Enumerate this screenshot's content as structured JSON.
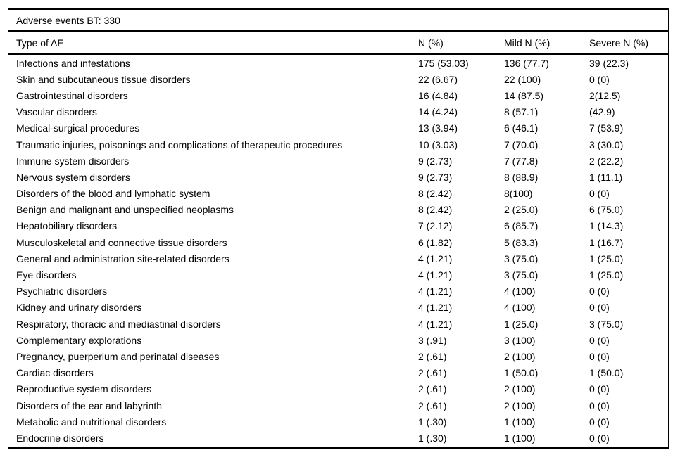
{
  "table": {
    "title": "Adverse events BT: 330",
    "columns": [
      "Type of AE",
      "N (%)",
      "Mild N (%)",
      "Severe N (%)"
    ],
    "rows": [
      [
        "Infections and infestations",
        "175 (53.03)",
        "136 (77.7)",
        "39 (22.3)"
      ],
      [
        "Skin and subcutaneous tissue disorders",
        "22 (6.67)",
        "22 (100)",
        "0 (0)"
      ],
      [
        "Gastrointestinal disorders",
        "16 (4.84)",
        "14 (87.5)",
        "2(12.5)"
      ],
      [
        "Vascular disorders",
        "14 (4.24)",
        "8 (57.1)",
        "(42.9)"
      ],
      [
        "Medical-surgical procedures",
        "13 (3.94)",
        "6 (46.1)",
        "7 (53.9)"
      ],
      [
        "Traumatic injuries, poisonings and complications of therapeutic procedures",
        "10 (3.03)",
        "7 (70.0)",
        "3 (30.0)"
      ],
      [
        "Immune system disorders",
        "9 (2.73)",
        "7 (77.8)",
        "2 (22.2)"
      ],
      [
        "Nervous system disorders",
        "9 (2.73)",
        "8 (88.9)",
        "1 (11.1)"
      ],
      [
        "Disorders of the blood and lymphatic system",
        "8 (2.42)",
        "8(100)",
        "0 (0)"
      ],
      [
        "Benign and malignant and unspecified neoplasms",
        "8 (2.42)",
        "2 (25.0)",
        "6 (75.0)"
      ],
      [
        "Hepatobiliary disorders",
        "7 (2.12)",
        "6 (85.7)",
        "1 (14.3)"
      ],
      [
        "Musculoskeletal and connective tissue disorders",
        "6 (1.82)",
        "5 (83.3)",
        "1 (16.7)"
      ],
      [
        "General and administration site-related disorders",
        "4 (1.21)",
        "3 (75.0)",
        "1 (25.0)"
      ],
      [
        "Eye disorders",
        "4 (1.21)",
        "3 (75.0)",
        "1 (25.0)"
      ],
      [
        "Psychiatric disorders",
        "4 (1.21)",
        "4 (100)",
        "0 (0)"
      ],
      [
        "Kidney and urinary disorders",
        "4 (1.21)",
        "4 (100)",
        "0 (0)"
      ],
      [
        "Respiratory, thoracic and mediastinal disorders",
        "4 (1.21)",
        "1 (25.0)",
        "3 (75.0)"
      ],
      [
        "Complementary explorations",
        "3 (.91)",
        "3 (100)",
        "0 (0)"
      ],
      [
        "Pregnancy, puerperium and perinatal diseases",
        "2 (.61)",
        "2 (100)",
        "0 (0)"
      ],
      [
        "Cardiac disorders",
        "2 (.61)",
        "1 (50.0)",
        "1 (50.0)"
      ],
      [
        "Reproductive system disorders",
        "2 (.61)",
        "2 (100)",
        "0 (0)"
      ],
      [
        "Disorders of the ear and labyrinth",
        "2 (.61)",
        "2 (100)",
        "0 (0)"
      ],
      [
        "Metabolic and nutritional disorders",
        "1 (.30)",
        "1 (100)",
        "0 (0)"
      ],
      [
        "Endocrine disorders",
        "1 (.30)",
        "1 (100)",
        "0 (0)"
      ]
    ]
  }
}
